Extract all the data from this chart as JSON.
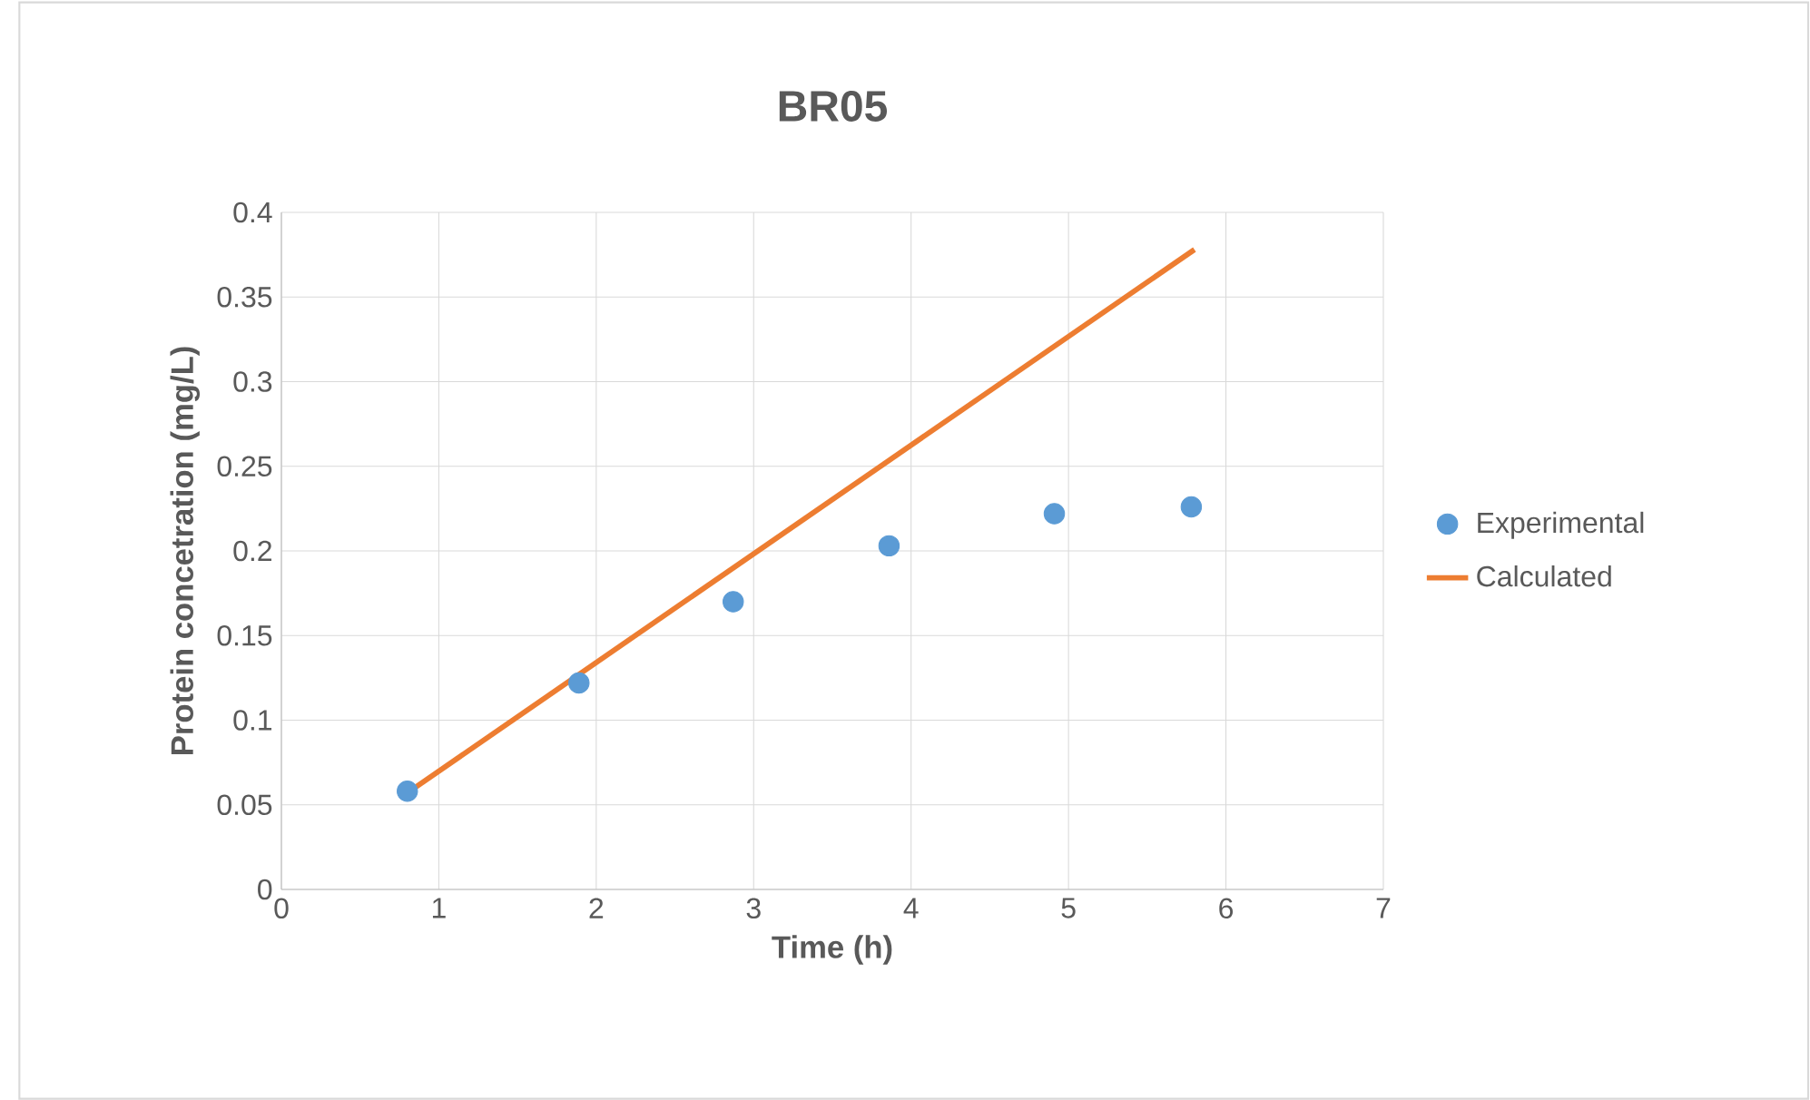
{
  "chart_data": {
    "type": "scatter",
    "title": "BR05",
    "xlabel": "Time (h)",
    "ylabel": "Protein concetration (mg/L)",
    "xlim": [
      0,
      7
    ],
    "xticks": [
      0,
      1,
      2,
      3,
      4,
      5,
      6,
      7
    ],
    "ylim": [
      0,
      0.4
    ],
    "yticks": [
      0,
      0.05,
      0.1,
      0.15,
      0.2,
      0.25,
      0.3,
      0.35,
      0.4
    ],
    "grid": true,
    "legend": "right",
    "series": [
      {
        "name": "Experimental",
        "marker": "circle",
        "color": "#5b9bd5",
        "x": [
          0.8,
          1.89,
          2.87,
          3.86,
          4.91,
          5.78
        ],
        "values": [
          0.058,
          0.122,
          0.17,
          0.203,
          0.222,
          0.226
        ]
      },
      {
        "name": "Calculated",
        "type": "line",
        "marker": "none",
        "line_style": "solid",
        "color": "#ed7d31",
        "x": [
          0.8,
          5.8
        ],
        "values": [
          0.057,
          0.378
        ]
      }
    ]
  }
}
